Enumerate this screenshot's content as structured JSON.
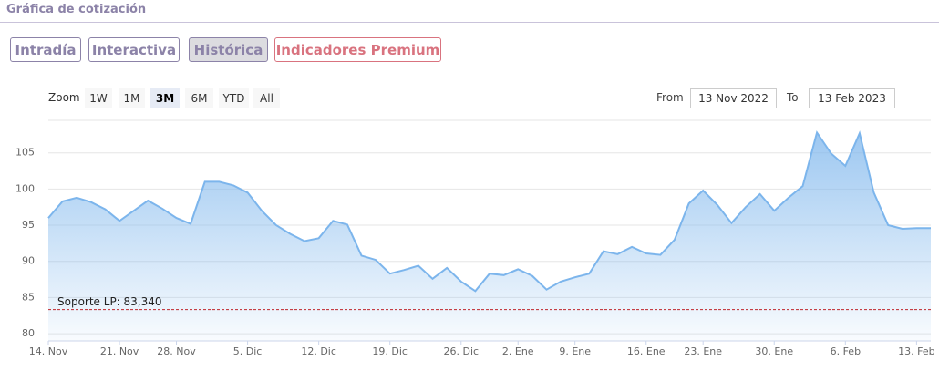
{
  "header": {
    "title": "Gráfica de cotización"
  },
  "tabs": [
    "Intradía",
    "Interactiva",
    "Histórica",
    "Indicadores Premium"
  ],
  "zoom": {
    "label": "Zoom",
    "buttons": [
      "1W",
      "1M",
      "3M",
      "6M",
      "YTD",
      "All"
    ]
  },
  "range": {
    "from_label": "From",
    "from": "13 Nov 2022",
    "to_label": "To",
    "to": "13 Feb 2023"
  },
  "chart_data": {
    "type": "area",
    "categories": [
      "14. Nov",
      null,
      null,
      null,
      null,
      "21. Nov",
      null,
      null,
      null,
      "28. Nov",
      null,
      null,
      null,
      null,
      "5. Dic",
      null,
      null,
      null,
      null,
      "12. Dic",
      null,
      null,
      null,
      null,
      "19. Dic",
      null,
      null,
      null,
      null,
      "26. Dic",
      null,
      null,
      null,
      "2. Ene",
      null,
      null,
      null,
      "9. Ene",
      null,
      null,
      null,
      null,
      "16. Ene",
      null,
      null,
      null,
      "23. Ene",
      null,
      null,
      null,
      null,
      "30. Ene",
      null,
      null,
      null,
      null,
      "6. Feb",
      null,
      null,
      null,
      null,
      "13. Feb",
      null
    ],
    "values": [
      96,
      98.3,
      98.8,
      98.2,
      97.2,
      95.6,
      97,
      98.4,
      97.3,
      96,
      95.2,
      101,
      101,
      100.5,
      99.5,
      97,
      95,
      93.8,
      92.8,
      93.2,
      95.6,
      95.1,
      90.8,
      90.2,
      88.3,
      88.8,
      89.4,
      87.6,
      89.1,
      87.2,
      85.9,
      88.3,
      88.1,
      88.9,
      88,
      86.1,
      87.2,
      87.8,
      88.3,
      91.4,
      91,
      92,
      91.1,
      90.9,
      93,
      98,
      99.8,
      97.8,
      95.3,
      97.5,
      99.3,
      97,
      98.8,
      100.4,
      107.8,
      104.9,
      103.2,
      107.7,
      99.5,
      95,
      94.5,
      94.6,
      94.6
    ],
    "color": "#7cb5ec",
    "ylim": [
      79,
      109.5
    ],
    "yticks": [
      80,
      85,
      90,
      95,
      100,
      105
    ],
    "grid": true,
    "annotation": {
      "label": "Soporte LP: 83,340",
      "value": 83.34,
      "color": "#c0262d"
    }
  }
}
